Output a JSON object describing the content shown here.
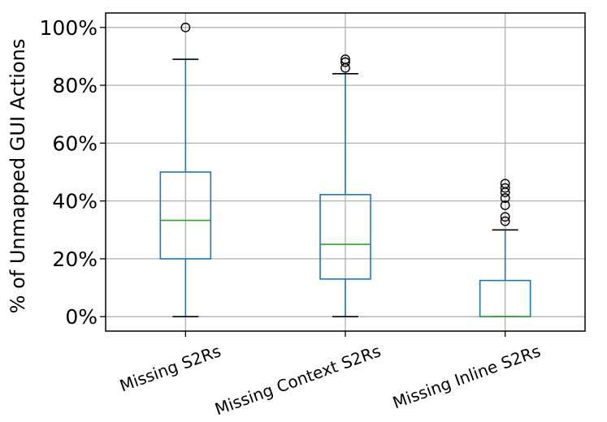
{
  "chart_data": {
    "type": "box",
    "title": "",
    "xlabel": "",
    "ylabel": "% of Unmapped GUI Actions",
    "ylim": [
      -5,
      105
    ],
    "yticks": [
      0,
      20,
      40,
      60,
      80,
      100
    ],
    "ytick_labels": [
      "0%",
      "20%",
      "40%",
      "60%",
      "80%",
      "100%"
    ],
    "grid": true,
    "categories": [
      "Missing S2Rs",
      "Missing Context S2Rs",
      "Missing Inline S2Rs"
    ],
    "boxes": [
      {
        "category": "Missing S2Rs",
        "whisker_low": 0,
        "q1": 20,
        "median": 33.3,
        "q3": 50,
        "whisker_high": 89,
        "outliers": [
          100
        ]
      },
      {
        "category": "Missing Context S2Rs",
        "whisker_low": 0,
        "q1": 13,
        "median": 25,
        "q3": 42.2,
        "whisker_high": 84,
        "outliers": [
          86,
          88,
          89
        ]
      },
      {
        "category": "Missing Inline S2Rs",
        "whisker_low": 0,
        "q1": 0,
        "median": 0,
        "q3": 12.5,
        "whisker_high": 30,
        "outliers": [
          33,
          34.5,
          38.5,
          41,
          43,
          44.5,
          46
        ]
      }
    ],
    "colors": {
      "box": "#1f77b4",
      "median": "#2ca02c",
      "grid": "#b0b0b0",
      "axis": "#000000"
    }
  }
}
